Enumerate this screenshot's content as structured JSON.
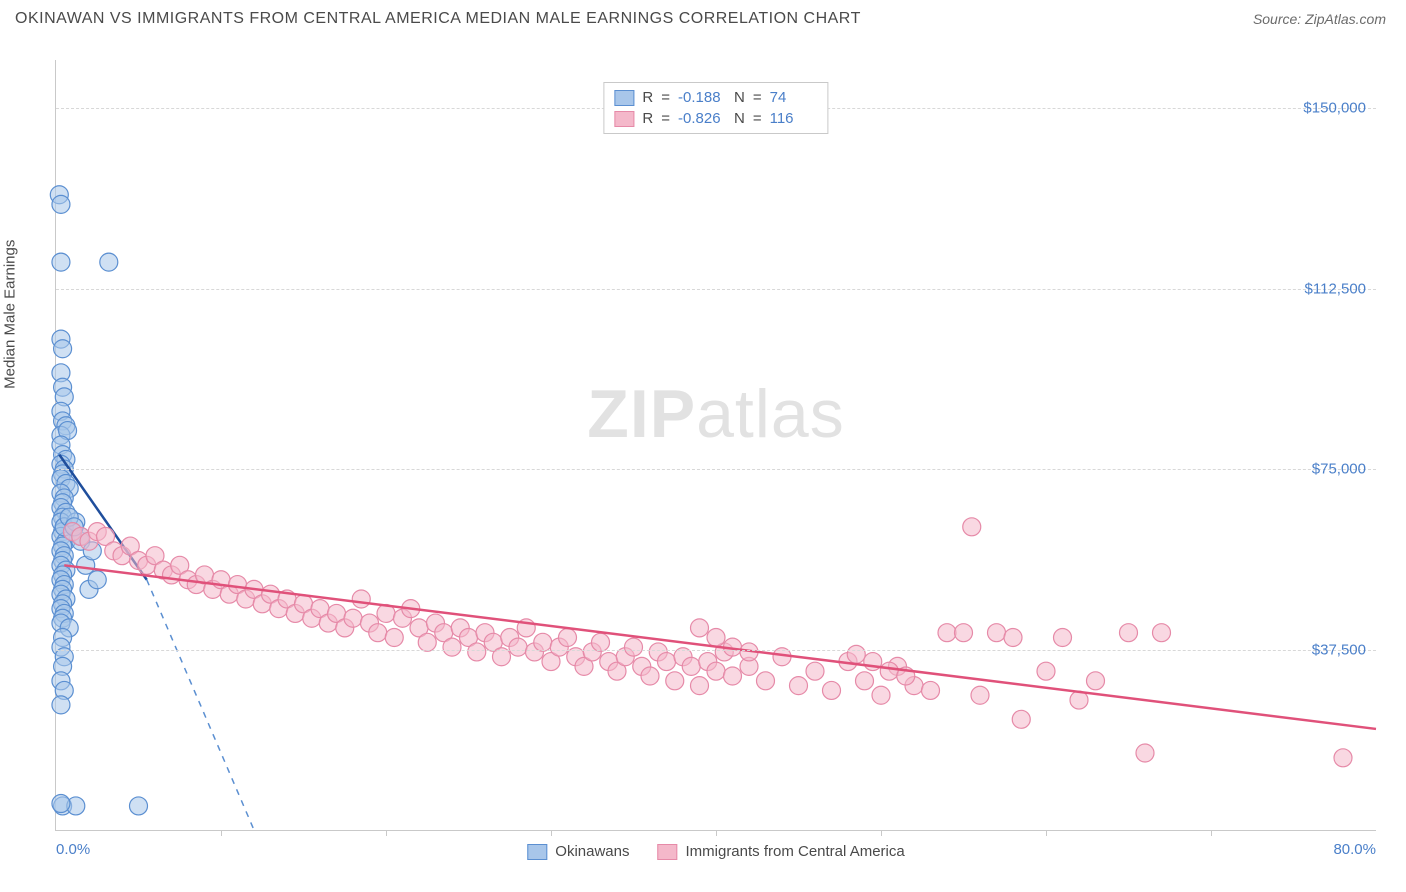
{
  "title": "OKINAWAN VS IMMIGRANTS FROM CENTRAL AMERICA MEDIAN MALE EARNINGS CORRELATION CHART",
  "source": "Source: ZipAtlas.com",
  "watermark_prefix": "ZIP",
  "watermark_suffix": "atlas",
  "y_axis_label": "Median Male Earnings",
  "x_axis": {
    "min_label": "0.0%",
    "max_label": "80.0%",
    "xmin": 0,
    "xmax": 80,
    "tick_step": 10
  },
  "y_axis": {
    "ymin": 0,
    "ymax": 160000,
    "ticks": [
      37500,
      75000,
      112500,
      150000
    ],
    "tick_labels": [
      "$37,500",
      "$75,000",
      "$112,500",
      "$150,000"
    ]
  },
  "series": [
    {
      "name": "Okinawans",
      "fill_color": "#a8c6ea",
      "stroke_color": "#5b8fd1",
      "line_color": "#1f4e9c",
      "R": "-0.188",
      "N": "74",
      "marker_radius": 9,
      "marker_opacity": 0.55,
      "trend": {
        "x1": 0.2,
        "y1": 78000,
        "x2": 5.5,
        "y2": 52000,
        "width": 2.5
      },
      "trend_extend": {
        "x1": 5.5,
        "y1": 52000,
        "x2": 12,
        "y2": 0
      },
      "points": [
        [
          0.2,
          132000
        ],
        [
          0.3,
          130000
        ],
        [
          0.3,
          118000
        ],
        [
          3.2,
          118000
        ],
        [
          0.3,
          102000
        ],
        [
          0.4,
          100000
        ],
        [
          0.3,
          95000
        ],
        [
          0.4,
          92000
        ],
        [
          0.5,
          90000
        ],
        [
          0.3,
          87000
        ],
        [
          0.4,
          85000
        ],
        [
          0.6,
          84000
        ],
        [
          0.3,
          82000
        ],
        [
          0.7,
          83000
        ],
        [
          0.3,
          80000
        ],
        [
          0.4,
          78000
        ],
        [
          0.6,
          77000
        ],
        [
          0.3,
          76000
        ],
        [
          0.5,
          75000
        ],
        [
          0.4,
          74000
        ],
        [
          0.3,
          73000
        ],
        [
          0.6,
          72000
        ],
        [
          0.8,
          71000
        ],
        [
          0.3,
          70000
        ],
        [
          0.5,
          69000
        ],
        [
          0.4,
          68000
        ],
        [
          0.3,
          67000
        ],
        [
          0.6,
          66000
        ],
        [
          0.4,
          65000
        ],
        [
          0.3,
          64000
        ],
        [
          0.5,
          63000
        ],
        [
          0.4,
          62000
        ],
        [
          0.3,
          61000
        ],
        [
          0.6,
          60000
        ],
        [
          0.4,
          59000
        ],
        [
          0.3,
          58000
        ],
        [
          0.5,
          57000
        ],
        [
          0.4,
          56000
        ],
        [
          0.3,
          55000
        ],
        [
          0.6,
          54000
        ],
        [
          0.4,
          53000
        ],
        [
          0.3,
          52000
        ],
        [
          0.5,
          51000
        ],
        [
          0.4,
          50000
        ],
        [
          0.3,
          49000
        ],
        [
          0.6,
          48000
        ],
        [
          0.4,
          47000
        ],
        [
          0.3,
          46000
        ],
        [
          0.5,
          45000
        ],
        [
          0.4,
          44000
        ],
        [
          0.3,
          43000
        ],
        [
          0.8,
          42000
        ],
        [
          1.5,
          60000
        ],
        [
          1.8,
          55000
        ],
        [
          2.0,
          50000
        ],
        [
          2.2,
          58000
        ],
        [
          2.5,
          52000
        ],
        [
          0.4,
          40000
        ],
        [
          0.3,
          38000
        ],
        [
          0.5,
          36000
        ],
        [
          0.4,
          34000
        ],
        [
          0.3,
          31000
        ],
        [
          0.5,
          29000
        ],
        [
          0.3,
          26000
        ],
        [
          0.4,
          5000
        ],
        [
          1.2,
          5000
        ],
        [
          5.0,
          5000
        ],
        [
          0.3,
          5500
        ],
        [
          0.5,
          63000
        ],
        [
          1.0,
          62000
        ],
        [
          1.2,
          64000
        ],
        [
          1.5,
          61000
        ],
        [
          0.8,
          65000
        ],
        [
          1.1,
          63000
        ]
      ]
    },
    {
      "name": "Immigrants from Central America",
      "fill_color": "#f4b8ca",
      "stroke_color": "#e68aa8",
      "line_color": "#e0517a",
      "R": "-0.826",
      "N": "116",
      "marker_radius": 9,
      "marker_opacity": 0.55,
      "trend": {
        "x1": 0.5,
        "y1": 55000,
        "x2": 80,
        "y2": 21000,
        "width": 2.5
      },
      "points": [
        [
          1.0,
          62000
        ],
        [
          1.5,
          61000
        ],
        [
          2.0,
          60000
        ],
        [
          2.5,
          62000
        ],
        [
          3.0,
          61000
        ],
        [
          3.5,
          58000
        ],
        [
          4.0,
          57000
        ],
        [
          4.5,
          59000
        ],
        [
          5.0,
          56000
        ],
        [
          5.5,
          55000
        ],
        [
          6.0,
          57000
        ],
        [
          6.5,
          54000
        ],
        [
          7.0,
          53000
        ],
        [
          7.5,
          55000
        ],
        [
          8.0,
          52000
        ],
        [
          8.5,
          51000
        ],
        [
          9.0,
          53000
        ],
        [
          9.5,
          50000
        ],
        [
          10.0,
          52000
        ],
        [
          10.5,
          49000
        ],
        [
          11.0,
          51000
        ],
        [
          11.5,
          48000
        ],
        [
          12.0,
          50000
        ],
        [
          12.5,
          47000
        ],
        [
          13.0,
          49000
        ],
        [
          13.5,
          46000
        ],
        [
          14.0,
          48000
        ],
        [
          14.5,
          45000
        ],
        [
          15.0,
          47000
        ],
        [
          15.5,
          44000
        ],
        [
          16.0,
          46000
        ],
        [
          16.5,
          43000
        ],
        [
          17.0,
          45000
        ],
        [
          17.5,
          42000
        ],
        [
          18.0,
          44000
        ],
        [
          18.5,
          48000
        ],
        [
          19.0,
          43000
        ],
        [
          19.5,
          41000
        ],
        [
          20.0,
          45000
        ],
        [
          20.5,
          40000
        ],
        [
          21.0,
          44000
        ],
        [
          21.5,
          46000
        ],
        [
          22.0,
          42000
        ],
        [
          22.5,
          39000
        ],
        [
          23.0,
          43000
        ],
        [
          23.5,
          41000
        ],
        [
          24.0,
          38000
        ],
        [
          24.5,
          42000
        ],
        [
          25.0,
          40000
        ],
        [
          25.5,
          37000
        ],
        [
          26.0,
          41000
        ],
        [
          26.5,
          39000
        ],
        [
          27.0,
          36000
        ],
        [
          27.5,
          40000
        ],
        [
          28.0,
          38000
        ],
        [
          28.5,
          42000
        ],
        [
          29.0,
          37000
        ],
        [
          29.5,
          39000
        ],
        [
          30.0,
          35000
        ],
        [
          30.5,
          38000
        ],
        [
          31.0,
          40000
        ],
        [
          31.5,
          36000
        ],
        [
          32.0,
          34000
        ],
        [
          32.5,
          37000
        ],
        [
          33.0,
          39000
        ],
        [
          33.5,
          35000
        ],
        [
          34.0,
          33000
        ],
        [
          34.5,
          36000
        ],
        [
          35.0,
          38000
        ],
        [
          35.5,
          34000
        ],
        [
          36.0,
          32000
        ],
        [
          36.5,
          37000
        ],
        [
          37.0,
          35000
        ],
        [
          37.5,
          31000
        ],
        [
          38.0,
          36000
        ],
        [
          38.5,
          34000
        ],
        [
          39.0,
          30000
        ],
        [
          39.5,
          35000
        ],
        [
          40.0,
          33000
        ],
        [
          40.5,
          37000
        ],
        [
          41.0,
          32000
        ],
        [
          42.0,
          34000
        ],
        [
          43.0,
          31000
        ],
        [
          44.0,
          36000
        ],
        [
          45.0,
          30000
        ],
        [
          46.0,
          33000
        ],
        [
          47.0,
          29000
        ],
        [
          48.0,
          35000
        ],
        [
          49.0,
          31000
        ],
        [
          50.0,
          28000
        ],
        [
          51.0,
          34000
        ],
        [
          52.0,
          30000
        ],
        [
          53.0,
          29000
        ],
        [
          54.0,
          41000
        ],
        [
          55.0,
          41000
        ],
        [
          56.0,
          28000
        ],
        [
          57.0,
          41000
        ],
        [
          58.0,
          40000
        ],
        [
          55.5,
          63000
        ],
        [
          60.0,
          33000
        ],
        [
          61.0,
          40000
        ],
        [
          62.0,
          27000
        ],
        [
          63.0,
          31000
        ],
        [
          65.0,
          41000
        ],
        [
          67.0,
          41000
        ],
        [
          66.0,
          16000
        ],
        [
          58.5,
          23000
        ],
        [
          78.0,
          15000
        ],
        [
          48.5,
          36500
        ],
        [
          49.5,
          35000
        ],
        [
          50.5,
          33000
        ],
        [
          51.5,
          32000
        ],
        [
          39.0,
          42000
        ],
        [
          40.0,
          40000
        ],
        [
          41.0,
          38000
        ],
        [
          42.0,
          37000
        ]
      ]
    }
  ],
  "stats_labels": {
    "R": "R",
    "equals": "=",
    "N": "N"
  },
  "legend_labels": [
    "Okinawans",
    "Immigrants from Central America"
  ]
}
